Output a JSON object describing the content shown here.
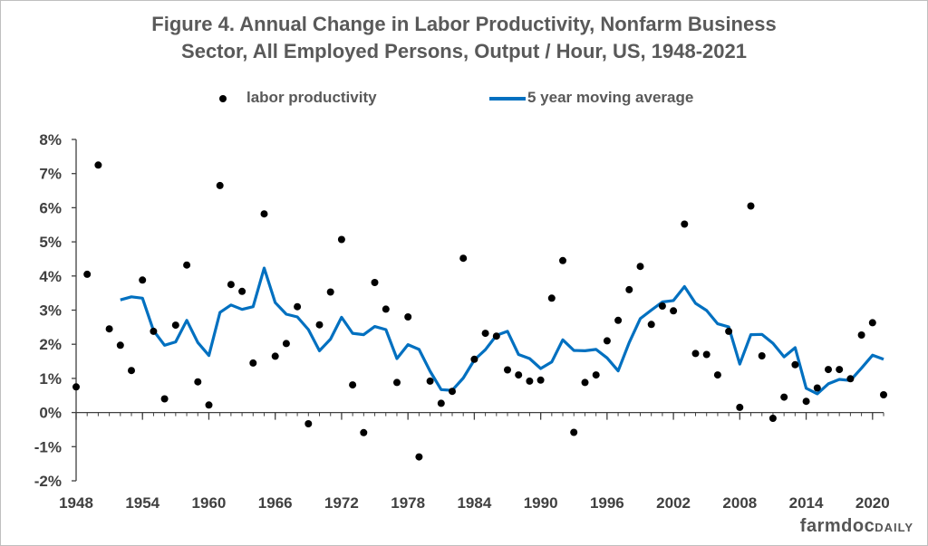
{
  "title_line1": "Figure 4.  Annual Change in Labor Productivity, Nonfarm Business",
  "title_line2": "Sector, All Employed Persons, Output / Hour, US, 1948-2021",
  "legend": {
    "points": "labor productivity",
    "line": "5 year moving average"
  },
  "brand": {
    "part1": "farmdoc",
    "part2": "DAILY"
  },
  "colors": {
    "points": "#000000",
    "line": "#0070c0",
    "axis": "#404040"
  },
  "chart_data": {
    "type": "scatter",
    "x_ticks": [
      1948,
      1954,
      1960,
      1966,
      1972,
      1978,
      1984,
      1990,
      1996,
      2002,
      2008,
      2014,
      2020
    ],
    "y_ticks": [
      "8%",
      "7%",
      "6%",
      "5%",
      "4%",
      "3%",
      "2%",
      "1%",
      "0%",
      "-1%",
      "-2%"
    ],
    "xlim": [
      1948,
      2021
    ],
    "ylim": [
      -2,
      8
    ],
    "grid": false,
    "series": [
      {
        "name": "labor productivity",
        "kind": "scatter",
        "x": [
          1948,
          1949,
          1950,
          1951,
          1952,
          1953,
          1954,
          1955,
          1956,
          1957,
          1958,
          1959,
          1960,
          1961,
          1962,
          1963,
          1964,
          1965,
          1966,
          1967,
          1968,
          1969,
          1970,
          1971,
          1972,
          1973,
          1974,
          1975,
          1976,
          1977,
          1978,
          1979,
          1980,
          1981,
          1982,
          1983,
          1984,
          1985,
          1986,
          1987,
          1988,
          1989,
          1990,
          1991,
          1992,
          1993,
          1994,
          1995,
          1996,
          1997,
          1998,
          1999,
          2000,
          2001,
          2002,
          2003,
          2004,
          2005,
          2006,
          2007,
          2008,
          2009,
          2010,
          2011,
          2012,
          2013,
          2014,
          2015,
          2016,
          2017,
          2018,
          2019,
          2020,
          2021
        ],
        "y": [
          0.75,
          4.05,
          7.25,
          2.45,
          1.97,
          1.23,
          3.88,
          2.38,
          0.4,
          2.56,
          4.32,
          0.9,
          0.22,
          6.65,
          3.75,
          3.55,
          1.45,
          5.82,
          1.65,
          2.02,
          3.1,
          -0.33,
          2.57,
          3.53,
          5.07,
          0.81,
          -0.59,
          3.81,
          3.03,
          0.88,
          2.8,
          -1.3,
          0.92,
          0.27,
          0.62,
          4.52,
          1.56,
          2.32,
          2.24,
          1.25,
          1.1,
          0.92,
          0.95,
          3.35,
          4.45,
          -0.58,
          0.88,
          1.1,
          2.1,
          2.7,
          3.6,
          4.28,
          2.58,
          3.12,
          2.98,
          5.52,
          1.73,
          1.7,
          1.1,
          2.38,
          0.15,
          6.05,
          1.66,
          -0.17,
          0.45,
          1.4,
          0.33,
          0.72,
          1.26,
          1.26,
          0.99,
          2.27,
          2.63,
          0.52
        ]
      },
      {
        "name": "5 year moving average",
        "kind": "line",
        "x": [
          1952,
          1953,
          1954,
          1955,
          1956,
          1957,
          1958,
          1959,
          1960,
          1961,
          1962,
          1963,
          1964,
          1965,
          1966,
          1967,
          1968,
          1969,
          1970,
          1971,
          1972,
          1973,
          1974,
          1975,
          1976,
          1977,
          1978,
          1979,
          1980,
          1981,
          1982,
          1983,
          1984,
          1985,
          1986,
          1987,
          1988,
          1989,
          1990,
          1991,
          1992,
          1993,
          1994,
          1995,
          1996,
          1997,
          1998,
          1999,
          2000,
          2001,
          2002,
          2003,
          2004,
          2005,
          2006,
          2007,
          2008,
          2009,
          2010,
          2011,
          2012,
          2013,
          2014,
          2015,
          2016,
          2017,
          2018,
          2019,
          2020,
          2021
        ],
        "y": [
          3.3,
          3.39,
          3.35,
          2.4,
          1.97,
          2.07,
          2.7,
          2.05,
          1.67,
          2.93,
          3.15,
          3.02,
          3.1,
          4.23,
          3.22,
          2.88,
          2.8,
          2.43,
          1.81,
          2.15,
          2.79,
          2.32,
          2.28,
          2.52,
          2.43,
          1.58,
          1.99,
          1.85,
          1.21,
          0.67,
          0.65,
          1.01,
          1.54,
          1.84,
          2.26,
          2.38,
          1.7,
          1.58,
          1.29,
          1.48,
          2.13,
          1.82,
          1.81,
          1.85,
          1.6,
          1.22,
          2.05,
          2.75,
          3.0,
          3.24,
          3.28,
          3.69,
          3.2,
          2.99,
          2.6,
          2.51,
          1.42,
          2.28,
          2.29,
          2.03,
          1.63,
          1.9,
          0.71,
          0.55,
          0.84,
          0.97,
          0.94,
          1.3,
          1.68,
          1.56
        ]
      }
    ]
  }
}
